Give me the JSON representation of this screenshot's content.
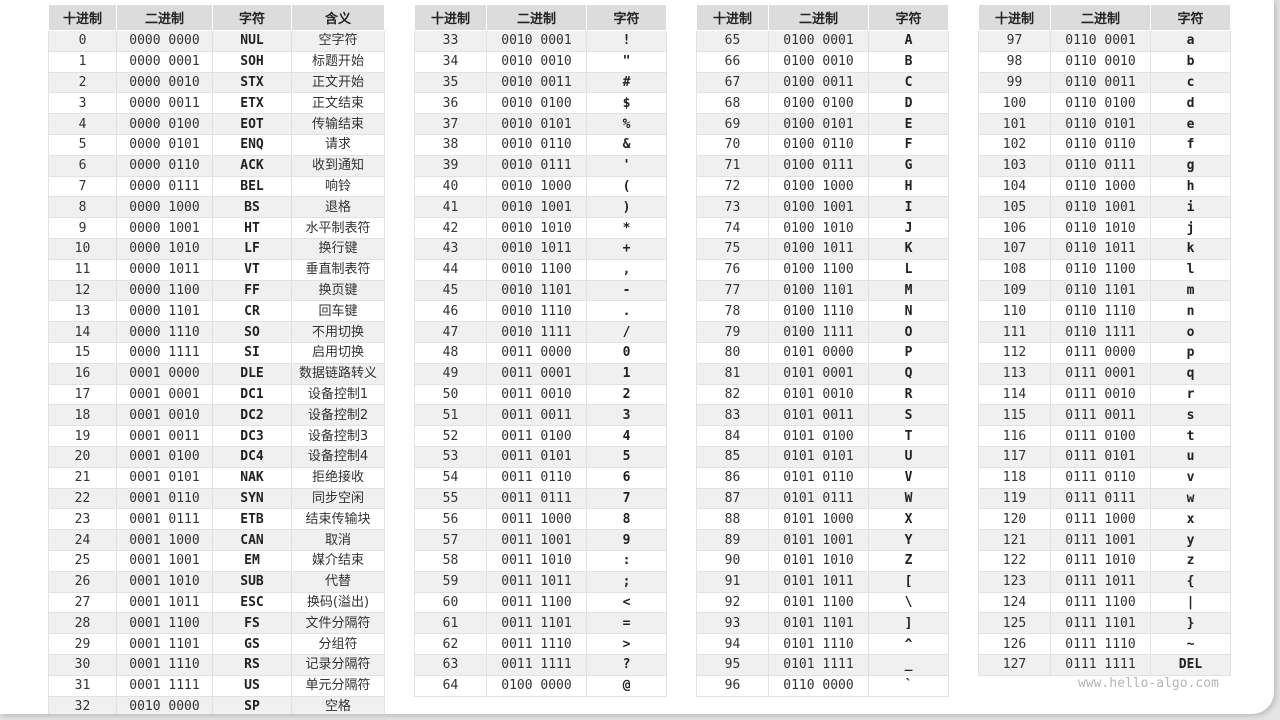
{
  "headers_full": [
    "十进制",
    "二进制",
    "字符",
    "含义"
  ],
  "headers": [
    "十进制",
    "二进制",
    "字符"
  ],
  "watermark": "www.hello-algo.com",
  "tables": [
    [
      [
        "0",
        "0000 0000",
        "NUL",
        "空字符"
      ],
      [
        "1",
        "0000 0001",
        "SOH",
        "标题开始"
      ],
      [
        "2",
        "0000 0010",
        "STX",
        "正文开始"
      ],
      [
        "3",
        "0000 0011",
        "ETX",
        "正文结束"
      ],
      [
        "4",
        "0000 0100",
        "EOT",
        "传输结束"
      ],
      [
        "5",
        "0000 0101",
        "ENQ",
        "请求"
      ],
      [
        "6",
        "0000 0110",
        "ACK",
        "收到通知"
      ],
      [
        "7",
        "0000 0111",
        "BEL",
        "响铃"
      ],
      [
        "8",
        "0000 1000",
        "BS",
        "退格"
      ],
      [
        "9",
        "0000 1001",
        "HT",
        "水平制表符"
      ],
      [
        "10",
        "0000 1010",
        "LF",
        "换行键"
      ],
      [
        "11",
        "0000 1011",
        "VT",
        "垂直制表符"
      ],
      [
        "12",
        "0000 1100",
        "FF",
        "换页键"
      ],
      [
        "13",
        "0000 1101",
        "CR",
        "回车键"
      ],
      [
        "14",
        "0000 1110",
        "SO",
        "不用切换"
      ],
      [
        "15",
        "0000 1111",
        "SI",
        "启用切换"
      ],
      [
        "16",
        "0001 0000",
        "DLE",
        "数据链路转义"
      ],
      [
        "17",
        "0001 0001",
        "DC1",
        "设备控制1"
      ],
      [
        "18",
        "0001 0010",
        "DC2",
        "设备控制2"
      ],
      [
        "19",
        "0001 0011",
        "DC3",
        "设备控制3"
      ],
      [
        "20",
        "0001 0100",
        "DC4",
        "设备控制4"
      ],
      [
        "21",
        "0001 0101",
        "NAK",
        "拒绝接收"
      ],
      [
        "22",
        "0001 0110",
        "SYN",
        "同步空闲"
      ],
      [
        "23",
        "0001 0111",
        "ETB",
        "结束传输块"
      ],
      [
        "24",
        "0001 1000",
        "CAN",
        "取消"
      ],
      [
        "25",
        "0001 1001",
        "EM",
        "媒介结束"
      ],
      [
        "26",
        "0001 1010",
        "SUB",
        "代替"
      ],
      [
        "27",
        "0001 1011",
        "ESC",
        "换码(溢出)"
      ],
      [
        "28",
        "0001 1100",
        "FS",
        "文件分隔符"
      ],
      [
        "29",
        "0001 1101",
        "GS",
        "分组符"
      ],
      [
        "30",
        "0001 1110",
        "RS",
        "记录分隔符"
      ],
      [
        "31",
        "0001 1111",
        "US",
        "单元分隔符"
      ],
      [
        "32",
        "0010 0000",
        "SP",
        "空格"
      ]
    ],
    [
      [
        "33",
        "0010 0001",
        "!"
      ],
      [
        "34",
        "0010 0010",
        "\""
      ],
      [
        "35",
        "0010 0011",
        "#"
      ],
      [
        "36",
        "0010 0100",
        "$"
      ],
      [
        "37",
        "0010 0101",
        "%"
      ],
      [
        "38",
        "0010 0110",
        "&"
      ],
      [
        "39",
        "0010 0111",
        "'"
      ],
      [
        "40",
        "0010 1000",
        "("
      ],
      [
        "41",
        "0010 1001",
        ")"
      ],
      [
        "42",
        "0010 1010",
        "*"
      ],
      [
        "43",
        "0010 1011",
        "+"
      ],
      [
        "44",
        "0010 1100",
        ","
      ],
      [
        "45",
        "0010 1101",
        "-"
      ],
      [
        "46",
        "0010 1110",
        "."
      ],
      [
        "47",
        "0010 1111",
        "/"
      ],
      [
        "48",
        "0011 0000",
        "0"
      ],
      [
        "49",
        "0011 0001",
        "1"
      ],
      [
        "50",
        "0011 0010",
        "2"
      ],
      [
        "51",
        "0011 0011",
        "3"
      ],
      [
        "52",
        "0011 0100",
        "4"
      ],
      [
        "53",
        "0011 0101",
        "5"
      ],
      [
        "54",
        "0011 0110",
        "6"
      ],
      [
        "55",
        "0011 0111",
        "7"
      ],
      [
        "56",
        "0011 1000",
        "8"
      ],
      [
        "57",
        "0011 1001",
        "9"
      ],
      [
        "58",
        "0011 1010",
        ":"
      ],
      [
        "59",
        "0011 1011",
        ";"
      ],
      [
        "60",
        "0011 1100",
        "<"
      ],
      [
        "61",
        "0011 1101",
        "="
      ],
      [
        "62",
        "0011 1110",
        ">"
      ],
      [
        "63",
        "0011 1111",
        "?"
      ],
      [
        "64",
        "0100 0000",
        "@"
      ]
    ],
    [
      [
        "65",
        "0100 0001",
        "A"
      ],
      [
        "66",
        "0100 0010",
        "B"
      ],
      [
        "67",
        "0100 0011",
        "C"
      ],
      [
        "68",
        "0100 0100",
        "D"
      ],
      [
        "69",
        "0100 0101",
        "E"
      ],
      [
        "70",
        "0100 0110",
        "F"
      ],
      [
        "71",
        "0100 0111",
        "G"
      ],
      [
        "72",
        "0100 1000",
        "H"
      ],
      [
        "73",
        "0100 1001",
        "I"
      ],
      [
        "74",
        "0100 1010",
        "J"
      ],
      [
        "75",
        "0100 1011",
        "K"
      ],
      [
        "76",
        "0100 1100",
        "L"
      ],
      [
        "77",
        "0100 1101",
        "M"
      ],
      [
        "78",
        "0100 1110",
        "N"
      ],
      [
        "79",
        "0100 1111",
        "O"
      ],
      [
        "80",
        "0101 0000",
        "P"
      ],
      [
        "81",
        "0101 0001",
        "Q"
      ],
      [
        "82",
        "0101 0010",
        "R"
      ],
      [
        "83",
        "0101 0011",
        "S"
      ],
      [
        "84",
        "0101 0100",
        "T"
      ],
      [
        "85",
        "0101 0101",
        "U"
      ],
      [
        "86",
        "0101 0110",
        "V"
      ],
      [
        "87",
        "0101 0111",
        "W"
      ],
      [
        "88",
        "0101 1000",
        "X"
      ],
      [
        "89",
        "0101 1001",
        "Y"
      ],
      [
        "90",
        "0101 1010",
        "Z"
      ],
      [
        "91",
        "0101 1011",
        "["
      ],
      [
        "92",
        "0101 1100",
        "\\"
      ],
      [
        "93",
        "0101 1101",
        "]"
      ],
      [
        "94",
        "0101 1110",
        "^"
      ],
      [
        "95",
        "0101 1111",
        "_"
      ],
      [
        "96",
        "0110 0000",
        "`"
      ]
    ],
    [
      [
        "97",
        "0110 0001",
        "a"
      ],
      [
        "98",
        "0110 0010",
        "b"
      ],
      [
        "99",
        "0110 0011",
        "c"
      ],
      [
        "100",
        "0110 0100",
        "d"
      ],
      [
        "101",
        "0110 0101",
        "e"
      ],
      [
        "102",
        "0110 0110",
        "f"
      ],
      [
        "103",
        "0110 0111",
        "g"
      ],
      [
        "104",
        "0110 1000",
        "h"
      ],
      [
        "105",
        "0110 1001",
        "i"
      ],
      [
        "106",
        "0110 1010",
        "j"
      ],
      [
        "107",
        "0110 1011",
        "k"
      ],
      [
        "108",
        "0110 1100",
        "l"
      ],
      [
        "109",
        "0110 1101",
        "m"
      ],
      [
        "110",
        "0110 1110",
        "n"
      ],
      [
        "111",
        "0110 1111",
        "o"
      ],
      [
        "112",
        "0111 0000",
        "p"
      ],
      [
        "113",
        "0111 0001",
        "q"
      ],
      [
        "114",
        "0111 0010",
        "r"
      ],
      [
        "115",
        "0111 0011",
        "s"
      ],
      [
        "116",
        "0111 0100",
        "t"
      ],
      [
        "117",
        "0111 0101",
        "u"
      ],
      [
        "118",
        "0111 0110",
        "v"
      ],
      [
        "119",
        "0111 0111",
        "w"
      ],
      [
        "120",
        "0111 1000",
        "x"
      ],
      [
        "121",
        "0111 1001",
        "y"
      ],
      [
        "122",
        "0111 1010",
        "z"
      ],
      [
        "123",
        "0111 1011",
        "{"
      ],
      [
        "124",
        "0111 1100",
        "|"
      ],
      [
        "125",
        "0111 1101",
        "}"
      ],
      [
        "126",
        "0111 1110",
        "~"
      ],
      [
        "127",
        "0111 1111",
        "DEL"
      ]
    ]
  ]
}
